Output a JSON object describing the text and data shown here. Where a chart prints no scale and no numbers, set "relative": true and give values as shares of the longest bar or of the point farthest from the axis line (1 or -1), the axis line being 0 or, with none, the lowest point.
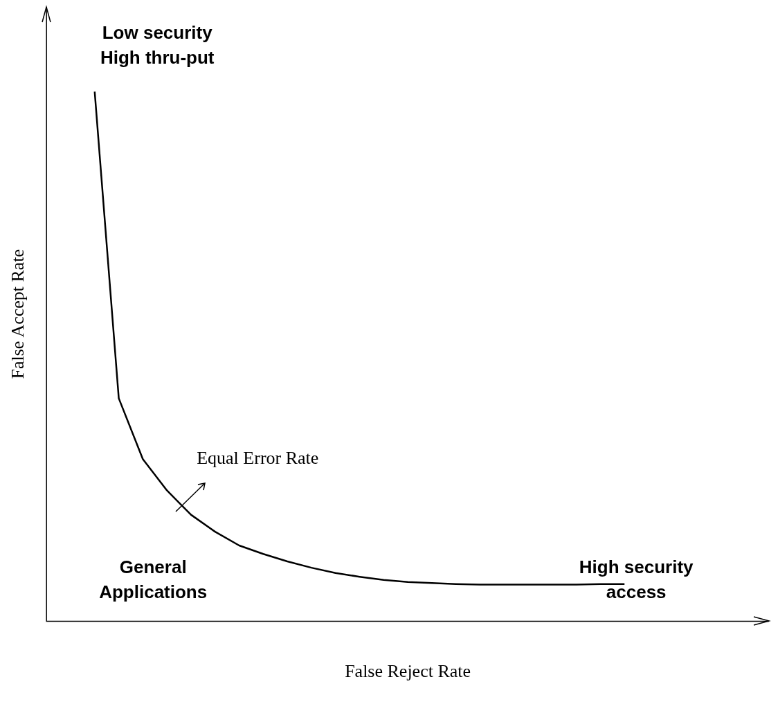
{
  "chart_data": {
    "type": "line",
    "relative": true,
    "xlabel": "False Reject Rate",
    "ylabel": "False Accept Rate",
    "grid": false,
    "legend": false,
    "marker": "none",
    "line_style": "solid",
    "categories": [
      null,
      null,
      null,
      null,
      null,
      null,
      null,
      null,
      null,
      null,
      null,
      null,
      null,
      null,
      null,
      null,
      null,
      null,
      null,
      null,
      null,
      null,
      null,
      null,
      null,
      null,
      null,
      null,
      null,
      null,
      null
    ],
    "series": [
      {
        "color": "#000000",
        "values": [
          null,
          null,
          1.0,
          0.421,
          0.306,
          0.247,
          0.201,
          0.169,
          0.143,
          0.127,
          0.113,
          0.101,
          0.091,
          0.084,
          0.078,
          0.074,
          0.072,
          0.07,
          0.069,
          0.069,
          0.069,
          0.069,
          0.069,
          0.07,
          0.07,
          null,
          null,
          null,
          null,
          null,
          null
        ]
      }
    ],
    "annotations": [
      "Low security\nHigh thru-put",
      "Equal Error Rate",
      "General\nApplications",
      "High security\naccess"
    ]
  }
}
